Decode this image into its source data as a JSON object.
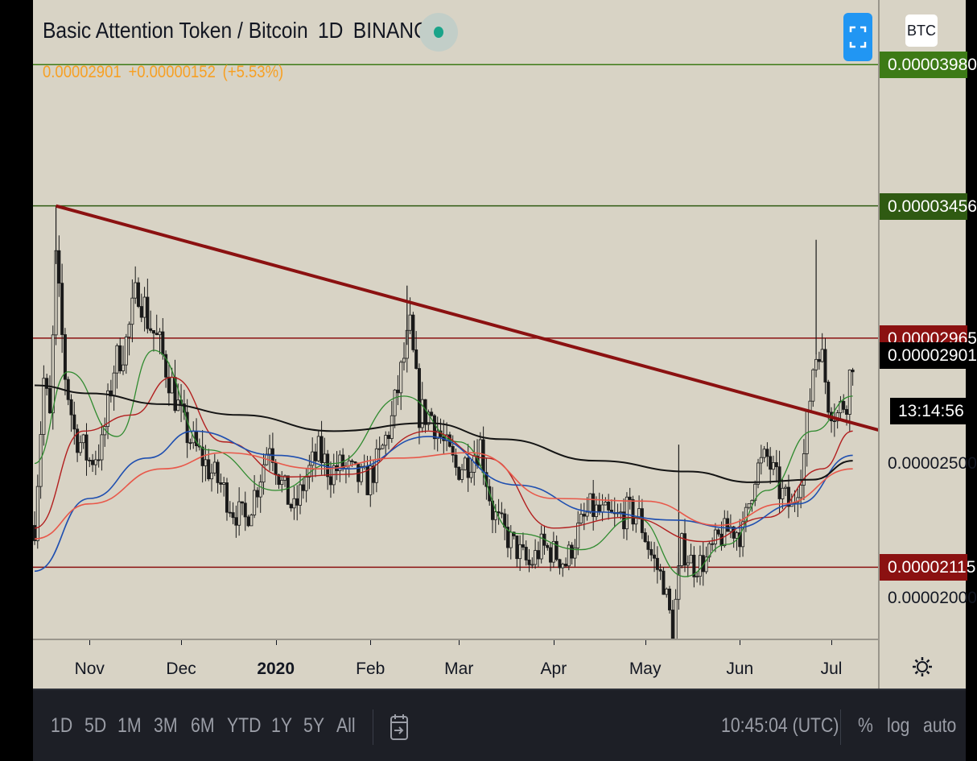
{
  "header": {
    "symbol": "Basic Attention Token / Bitcoin",
    "interval": "1D",
    "exchange": "BINANCE",
    "last": "0.00002901",
    "change": "+0.00000152",
    "change_pct": "(+5.53%)",
    "currency": "BTC"
  },
  "countdown": "13:14:56",
  "bottom_bar": {
    "ranges": [
      "1D",
      "5D",
      "1M",
      "3M",
      "6M",
      "YTD",
      "1Y",
      "5Y",
      "All"
    ],
    "time": "10:45:04 (UTC)",
    "pct": "%",
    "log": "log",
    "auto": "auto"
  },
  "colors": {
    "background": "#d8d3c5",
    "up": "#d8d3c5",
    "down": "#1a1a1a",
    "trendline": "#8b1111",
    "resistance_label": "#8b1111",
    "top_level_label": "#3d7a16",
    "mid_level_label": "#2f5a12",
    "ma_green": "#2e8a2e",
    "ma_red": "#b21f1f",
    "ma_blue": "#1f4fb0",
    "ma_salmon": "#e8584a",
    "ma_black": "#141414"
  },
  "chart_data": {
    "type": "candlestick",
    "instrument": "Basic Attention Token / Bitcoin",
    "timeframe": "1D",
    "x_ticks": [
      "Nov",
      "Dec",
      "2020",
      "Feb",
      "Mar",
      "Apr",
      "May",
      "Jun",
      "Jul"
    ],
    "y_ticks": [
      "0.00002000",
      "0.00002500"
    ],
    "ylim": [
      1.85e-05,
      4.22e-05
    ],
    "last_price": 2.901e-05,
    "levels": [
      {
        "label": "0.00003980",
        "value": 3.98e-05,
        "color": "#3d7a16"
      },
      {
        "label": "0.00003456",
        "value": 3.456e-05,
        "color": "#2f5a12"
      },
      {
        "label": "0.00002965",
        "value": 2.965e-05,
        "color": "#8b1111"
      },
      {
        "label": "0.00002115",
        "value": 2.115e-05,
        "color": "#8b1111"
      }
    ],
    "trendline": {
      "from": {
        "date": "2019-10-21",
        "price": 3.456e-05
      },
      "to": {
        "date": "2020-07-15",
        "price": 2.61e-05
      }
    },
    "ohlc_close_path": [
      [
        "2019-10-14",
        2.27e-05
      ],
      [
        "2019-10-17",
        2.81e-05
      ],
      [
        "2019-10-19",
        2.66e-05
      ],
      [
        "2019-10-21",
        3.24e-05
      ],
      [
        "2019-10-24",
        2.83e-05
      ],
      [
        "2019-10-27",
        2.62e-05
      ],
      [
        "2019-11-01",
        2.51e-05
      ],
      [
        "2019-11-05",
        2.56e-05
      ],
      [
        "2019-11-09",
        2.86e-05
      ],
      [
        "2019-11-13",
        2.95e-05
      ],
      [
        "2019-11-17",
        3.16e-05
      ],
      [
        "2019-11-20",
        3.04e-05
      ],
      [
        "2019-11-24",
        2.93e-05
      ],
      [
        "2019-11-28",
        2.79e-05
      ],
      [
        "2019-12-02",
        2.63e-05
      ],
      [
        "2019-12-06",
        2.55e-05
      ],
      [
        "2019-12-10",
        2.48e-05
      ],
      [
        "2019-12-14",
        2.42e-05
      ],
      [
        "2019-12-18",
        2.33e-05
      ],
      [
        "2019-12-22",
        2.29e-05
      ],
      [
        "2019-12-26",
        2.42e-05
      ],
      [
        "2019-12-30",
        2.59e-05
      ],
      [
        "2020-01-03",
        2.42e-05
      ],
      [
        "2020-01-07",
        2.32e-05
      ],
      [
        "2020-01-11",
        2.45e-05
      ],
      [
        "2020-01-15",
        2.54e-05
      ],
      [
        "2020-01-19",
        2.47e-05
      ],
      [
        "2020-01-23",
        2.49e-05
      ],
      [
        "2020-01-27",
        2.45e-05
      ],
      [
        "2020-01-31",
        2.43e-05
      ],
      [
        "2020-02-04",
        2.52e-05
      ],
      [
        "2020-02-08",
        2.66e-05
      ],
      [
        "2020-02-12",
        2.89e-05
      ],
      [
        "2020-02-14",
        2.99e-05
      ],
      [
        "2020-02-17",
        2.69e-05
      ],
      [
        "2020-02-21",
        2.68e-05
      ],
      [
        "2020-02-25",
        2.57e-05
      ],
      [
        "2020-02-29",
        2.48e-05
      ],
      [
        "2020-03-04",
        2.51e-05
      ],
      [
        "2020-03-08",
        2.57e-05
      ],
      [
        "2020-03-12",
        2.32e-05
      ],
      [
        "2020-03-16",
        2.24e-05
      ],
      [
        "2020-03-20",
        2.18e-05
      ],
      [
        "2020-03-24",
        2.12e-05
      ],
      [
        "2020-03-28",
        2.19e-05
      ],
      [
        "2020-04-01",
        2.17e-05
      ],
      [
        "2020-04-05",
        2.13e-05
      ],
      [
        "2020-04-09",
        2.25e-05
      ],
      [
        "2020-04-13",
        2.33e-05
      ],
      [
        "2020-04-17",
        2.31e-05
      ],
      [
        "2020-04-21",
        2.29e-05
      ],
      [
        "2020-04-25",
        2.32e-05
      ],
      [
        "2020-04-29",
        2.3e-05
      ],
      [
        "2020-05-03",
        2.16e-05
      ],
      [
        "2020-05-07",
        2.06e-05
      ],
      [
        "2020-05-10",
        1.88e-05
      ],
      [
        "2020-05-13",
        2.19e-05
      ],
      [
        "2020-05-17",
        2.12e-05
      ],
      [
        "2020-05-21",
        2.14e-05
      ],
      [
        "2020-05-25",
        2.22e-05
      ],
      [
        "2020-05-29",
        2.26e-05
      ],
      [
        "2020-06-02",
        2.24e-05
      ],
      [
        "2020-06-06",
        2.47e-05
      ],
      [
        "2020-06-10",
        2.52e-05
      ],
      [
        "2020-06-14",
        2.4e-05
      ],
      [
        "2020-06-18",
        2.33e-05
      ],
      [
        "2020-06-22",
        2.53e-05
      ],
      [
        "2020-06-25",
        2.86e-05
      ],
      [
        "2020-06-27",
        2.95e-05
      ],
      [
        "2020-06-30",
        2.74e-05
      ],
      [
        "2020-07-03",
        2.68e-05
      ],
      [
        "2020-07-06",
        2.75e-05
      ],
      [
        "2020-07-08",
        2.9e-05
      ]
    ],
    "series": [
      {
        "points": [
          [
            "2019-10-14",
            2.5e-05
          ],
          [
            "2019-10-25",
            2.84e-05
          ],
          [
            "2019-11-10",
            2.6e-05
          ],
          [
            "2019-11-22",
            2.92e-05
          ],
          [
            "2019-12-10",
            2.55e-05
          ],
          [
            "2020-01-01",
            2.4e-05
          ],
          [
            "2020-01-20",
            2.5e-05
          ],
          [
            "2020-02-12",
            2.75e-05
          ],
          [
            "2020-03-01",
            2.58e-05
          ],
          [
            "2020-03-20",
            2.24e-05
          ],
          [
            "2020-04-10",
            2.18e-05
          ],
          [
            "2020-04-28",
            2.3e-05
          ],
          [
            "2020-05-14",
            2.08e-05
          ],
          [
            "2020-05-28",
            2.2e-05
          ],
          [
            "2020-06-10",
            2.4e-05
          ],
          [
            "2020-06-25",
            2.62e-05
          ],
          [
            "2020-07-08",
            2.75e-05
          ]
        ]
      },
      {
        "points": [
          [
            "2019-10-14",
            2.26e-05
          ],
          [
            "2019-10-30",
            2.62e-05
          ],
          [
            "2019-11-15",
            2.68e-05
          ],
          [
            "2019-11-28",
            2.82e-05
          ],
          [
            "2019-12-15",
            2.58e-05
          ],
          [
            "2020-01-05",
            2.45e-05
          ],
          [
            "2020-01-25",
            2.46e-05
          ],
          [
            "2020-02-20",
            2.62e-05
          ],
          [
            "2020-03-10",
            2.52e-05
          ],
          [
            "2020-04-01",
            2.26e-05
          ],
          [
            "2020-04-25",
            2.3e-05
          ],
          [
            "2020-05-20",
            2.21e-05
          ],
          [
            "2020-06-10",
            2.3e-05
          ],
          [
            "2020-06-28",
            2.48e-05
          ],
          [
            "2020-07-08",
            2.62e-05
          ]
        ]
      },
      {
        "points": [
          [
            "2019-10-14",
            2.1e-05
          ],
          [
            "2019-11-01",
            2.37e-05
          ],
          [
            "2019-11-20",
            2.52e-05
          ],
          [
            "2019-12-05",
            2.62e-05
          ],
          [
            "2020-01-01",
            2.53e-05
          ],
          [
            "2020-01-25",
            2.48e-05
          ],
          [
            "2020-02-20",
            2.6e-05
          ],
          [
            "2020-03-20",
            2.42e-05
          ],
          [
            "2020-04-15",
            2.32e-05
          ],
          [
            "2020-05-10",
            2.29e-05
          ],
          [
            "2020-05-30",
            2.26e-05
          ],
          [
            "2020-06-20",
            2.35e-05
          ],
          [
            "2020-07-08",
            2.53e-05
          ]
        ]
      },
      {
        "points": [
          [
            "2019-10-14",
            2.22e-05
          ],
          [
            "2019-11-01",
            2.35e-05
          ],
          [
            "2019-11-25",
            2.48e-05
          ],
          [
            "2019-12-15",
            2.54e-05
          ],
          [
            "2020-01-15",
            2.48e-05
          ],
          [
            "2020-02-10",
            2.52e-05
          ],
          [
            "2020-03-05",
            2.54e-05
          ],
          [
            "2020-04-01",
            2.37e-05
          ],
          [
            "2020-05-01",
            2.36e-05
          ],
          [
            "2020-05-25",
            2.27e-05
          ],
          [
            "2020-06-15",
            2.35e-05
          ],
          [
            "2020-07-08",
            2.48e-05
          ]
        ]
      },
      {
        "points": [
          [
            "2019-10-14",
            2.79e-05
          ],
          [
            "2019-11-01",
            2.76e-05
          ],
          [
            "2019-11-25",
            2.72e-05
          ],
          [
            "2019-12-20",
            2.68e-05
          ],
          [
            "2020-01-20",
            2.62e-05
          ],
          [
            "2020-02-20",
            2.65e-05
          ],
          [
            "2020-03-15",
            2.59e-05
          ],
          [
            "2020-04-15",
            2.51e-05
          ],
          [
            "2020-05-15",
            2.47e-05
          ],
          [
            "2020-06-05",
            2.43e-05
          ],
          [
            "2020-06-25",
            2.44e-05
          ],
          [
            "2020-07-08",
            2.51e-05
          ]
        ]
      }
    ]
  }
}
